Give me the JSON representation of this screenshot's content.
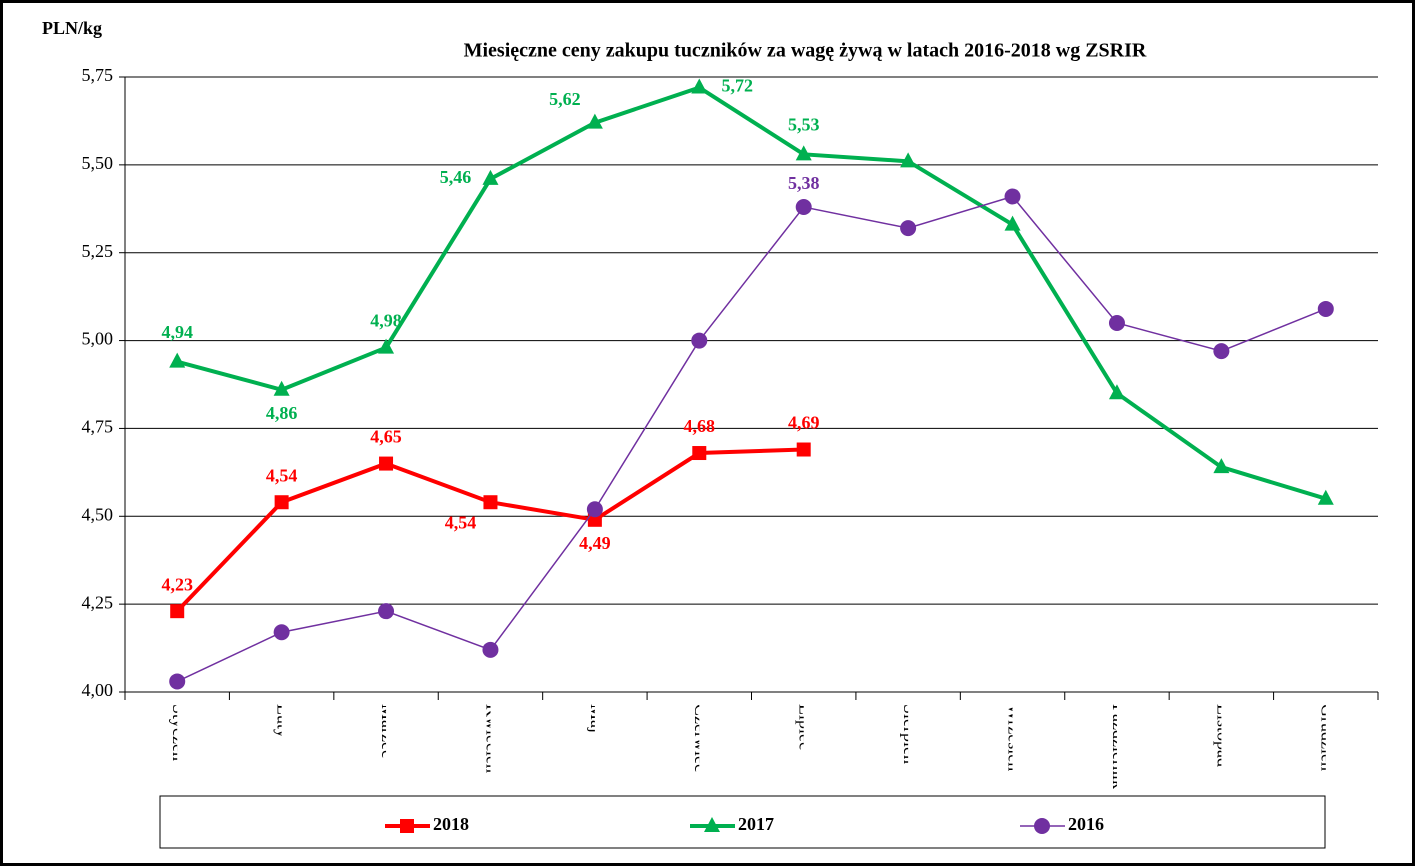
{
  "chart_data": {
    "type": "line",
    "title": "Miesięczne ceny zakupu tuczników za wagę żywą w latach 2016-2018  wg ZSRIR",
    "y_label": "PLN/kg",
    "categories": [
      "Styczeń",
      "Luty",
      "Marzec",
      "Kwiecień",
      "Maj",
      "Czerwiec",
      "Lipiec",
      "Sierpień",
      "Wrzesień",
      "Październik",
      "Listopad",
      "Grudzień"
    ],
    "series": [
      {
        "name": "2018",
        "color": "#ff0000",
        "marker": "square",
        "values": [
          4.23,
          4.54,
          4.65,
          4.54,
          4.49,
          4.68,
          4.69,
          null,
          null,
          null,
          null,
          null
        ],
        "value_labels": [
          "4,23",
          "4,54",
          "4,65",
          "4,54",
          "4,49",
          "4,68",
          "4,69",
          null,
          null,
          null,
          null,
          null
        ]
      },
      {
        "name": "2017",
        "color": "#00b050",
        "marker": "triangle",
        "values": [
          4.94,
          4.86,
          4.98,
          5.46,
          5.62,
          5.72,
          5.53,
          5.51,
          5.33,
          4.85,
          4.64,
          4.55
        ],
        "value_labels": [
          "4,94",
          "4,86",
          "4,98",
          "5,46",
          "5,62",
          "5,72",
          "5,53",
          null,
          null,
          null,
          null,
          null
        ]
      },
      {
        "name": "2016",
        "color": "#7030a0",
        "marker": "circle",
        "values": [
          4.03,
          4.17,
          4.23,
          4.12,
          4.52,
          5.0,
          5.38,
          5.32,
          5.41,
          5.05,
          4.97,
          5.09
        ],
        "value_labels": [
          null,
          null,
          null,
          null,
          null,
          null,
          "5,38",
          null,
          null,
          null,
          null,
          null
        ]
      }
    ],
    "ylim": [
      4,
      5.75
    ],
    "yticks": [
      {
        "value": 4,
        "label": "4,00"
      },
      {
        "value": 4.25,
        "label": "4,25"
      },
      {
        "value": 4.5,
        "label": "4,50"
      },
      {
        "value": 4.75,
        "label": "4,75"
      },
      {
        "value": 5,
        "label": "5,00"
      },
      {
        "value": 5.25,
        "label": "5,25"
      },
      {
        "value": 5.5,
        "label": "5,50"
      },
      {
        "value": 5.75,
        "label": "5,75"
      }
    ],
    "grid": true,
    "legend": "bottom"
  }
}
